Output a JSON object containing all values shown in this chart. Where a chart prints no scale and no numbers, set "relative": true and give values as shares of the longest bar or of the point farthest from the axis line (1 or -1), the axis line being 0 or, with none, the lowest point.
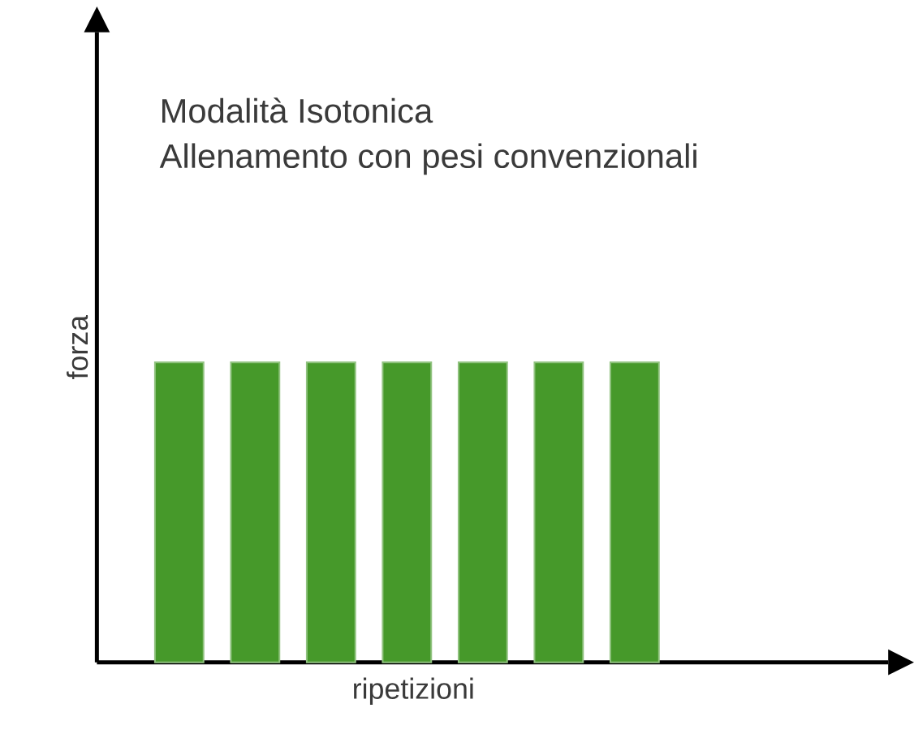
{
  "chart_data": {
    "type": "bar",
    "title": "Modalità Isotonica",
    "subtitle": "Allenamento con pesi convenzionali",
    "xlabel": "ripetizioni",
    "ylabel": "forza",
    "categories": [
      null,
      null,
      null,
      null,
      null,
      null,
      null
    ],
    "values": [
      1,
      1,
      1,
      1,
      1,
      1,
      1
    ],
    "color": "#46992a",
    "relative": true
  }
}
